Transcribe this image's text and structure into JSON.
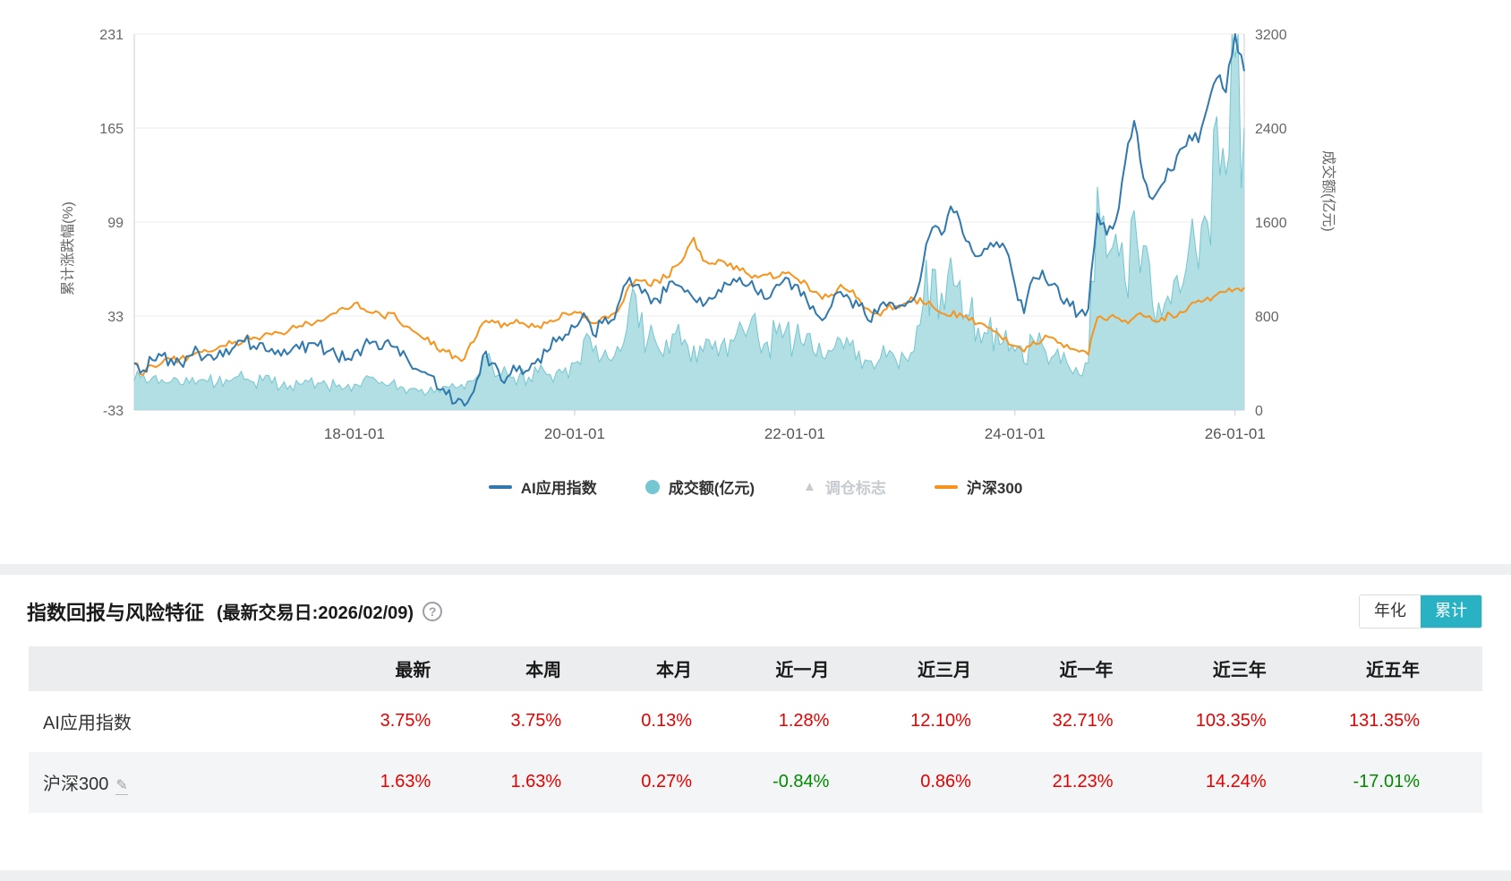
{
  "colors": {
    "blue": "#3078ad",
    "teal_fill": "#a9dbe1",
    "teal_line": "#74c6d1",
    "orange": "#f7941e",
    "marker_gray": "#c6cbd0",
    "accent_teal": "#28b2c4",
    "up_red": "#e60000",
    "down_green": "#008a00"
  },
  "chart_data": {
    "type": "line",
    "title": "",
    "grid": true,
    "legend_position": "bottom",
    "x_start_year": 2016.0,
    "x_end_year": 2026.0833,
    "x_tick_years": [
      2018,
      2020,
      2022,
      2024,
      2026
    ],
    "x_tick_labels": [
      "18-01-01",
      "20-01-01",
      "22-01-01",
      "24-01-01",
      "26-01-01"
    ],
    "left_axis": {
      "label": "累计涨跌幅(%)",
      "min": -33,
      "max": 231,
      "ticks": [
        231,
        165,
        99,
        33,
        -33
      ]
    },
    "right_axis": {
      "label": "成交额(亿元)",
      "min": 0,
      "max": 3200,
      "ticks": [
        3200,
        2400,
        1600,
        800,
        0
      ]
    },
    "series": [
      {
        "name": "AI应用指数",
        "type": "line",
        "axis": "left",
        "color": "#3078ad",
        "values": [
          0,
          -5,
          2,
          5,
          3,
          0,
          5,
          8,
          6,
          4,
          10,
          12,
          15,
          12,
          14,
          10,
          5,
          8,
          10,
          14,
          12,
          8,
          5,
          2,
          8,
          12,
          15,
          10,
          12,
          5,
          0,
          -5,
          -8,
          -18,
          -22,
          -28,
          -30,
          -20,
          5,
          0,
          -12,
          -8,
          -2,
          -5,
          3,
          8,
          15,
          20,
          25,
          35,
          20,
          28,
          30,
          45,
          60,
          55,
          48,
          45,
          50,
          55,
          50,
          45,
          40,
          45,
          50,
          55,
          60,
          55,
          48,
          45,
          55,
          60,
          55,
          50,
          40,
          30,
          40,
          50,
          45,
          40,
          30,
          35,
          40,
          38,
          40,
          45,
          70,
          95,
          90,
          110,
          100,
          85,
          75,
          80,
          85,
          80,
          55,
          35,
          60,
          65,
          55,
          45,
          40,
          35,
          38,
          105,
          90,
          100,
          140,
          170,
          130,
          115,
          125,
          135,
          150,
          160,
          155,
          180,
          200,
          190,
          231,
          205
        ]
      },
      {
        "name": "成交额(亿元)",
        "type": "area",
        "axis": "right",
        "color": "#a9dbe1",
        "line_color": "#74c6d1",
        "values": [
          250,
          300,
          280,
          260,
          240,
          220,
          230,
          250,
          240,
          230,
          260,
          280,
          260,
          240,
          250,
          230,
          200,
          210,
          220,
          240,
          230,
          210,
          200,
          190,
          220,
          260,
          280,
          240,
          230,
          200,
          180,
          160,
          150,
          180,
          200,
          190,
          180,
          250,
          450,
          380,
          300,
          280,
          300,
          280,
          320,
          300,
          320,
          360,
          400,
          600,
          500,
          450,
          420,
          500,
          900,
          700,
          600,
          550,
          600,
          650,
          600,
          550,
          500,
          520,
          560,
          600,
          750,
          700,
          620,
          580,
          650,
          680,
          600,
          550,
          500,
          450,
          500,
          600,
          550,
          500,
          420,
          400,
          450,
          430,
          450,
          500,
          900,
          1200,
          1000,
          1300,
          1100,
          800,
          700,
          650,
          700,
          680,
          500,
          400,
          600,
          550,
          450,
          400,
          350,
          300,
          400,
          1900,
          1300,
          1500,
          1100,
          1700,
          1400,
          900,
          800,
          900,
          1000,
          1400,
          1200,
          1600,
          2500,
          2000,
          3000,
          2400
        ]
      },
      {
        "name": "调仓标志",
        "type": "marker",
        "disabled": true,
        "color": "#c6cbd0",
        "values": []
      },
      {
        "name": "沪深300",
        "type": "line",
        "axis": "left",
        "color": "#f7941e",
        "values": [
          0,
          -8,
          -2,
          0,
          2,
          3,
          5,
          8,
          8,
          10,
          12,
          15,
          16,
          18,
          19,
          20,
          21,
          24,
          26,
          28,
          30,
          32,
          35,
          38,
          42,
          38,
          35,
          33,
          35,
          28,
          25,
          20,
          18,
          10,
          8,
          5,
          3,
          15,
          28,
          30,
          25,
          28,
          28,
          25,
          26,
          28,
          30,
          35,
          36,
          32,
          28,
          32,
          34,
          40,
          55,
          58,
          55,
          58,
          60,
          68,
          75,
          88,
          72,
          70,
          72,
          70,
          65,
          62,
          60,
          62,
          60,
          63,
          60,
          58,
          50,
          45,
          48,
          55,
          50,
          45,
          38,
          35,
          38,
          40,
          42,
          45,
          42,
          40,
          35,
          33,
          35,
          30,
          28,
          25,
          22,
          18,
          12,
          8,
          15,
          16,
          18,
          14,
          10,
          8,
          6,
          32,
          30,
          32,
          30,
          32,
          33,
          30,
          32,
          34,
          36,
          40,
          44,
          46,
          48,
          50,
          52,
          53
        ]
      }
    ]
  },
  "panel": {
    "title": "指数回报与风险特征",
    "subtitle": "(最新交易日:2026/02/09)",
    "help": "?",
    "toggle": {
      "annualized": "年化",
      "cumulative": "累计",
      "active": "累计"
    }
  },
  "table": {
    "columns": [
      "最新",
      "本周",
      "本月",
      "近一月",
      "近三月",
      "近一年",
      "近三年",
      "近五年"
    ],
    "rows": [
      {
        "name": "AI应用指数",
        "editable": false,
        "values": [
          "3.75%",
          "3.75%",
          "0.13%",
          "1.28%",
          "12.10%",
          "32.71%",
          "103.35%",
          "131.35%"
        ],
        "styles": [
          "up",
          "up",
          "up",
          "up",
          "up",
          "up",
          "up",
          "up"
        ]
      },
      {
        "name": "沪深300",
        "editable": true,
        "values": [
          "1.63%",
          "1.63%",
          "0.27%",
          "-0.84%",
          "0.86%",
          "21.23%",
          "14.24%",
          "-17.01%"
        ],
        "styles": [
          "up",
          "up",
          "up",
          "down",
          "up",
          "up",
          "up",
          "down"
        ]
      }
    ]
  }
}
